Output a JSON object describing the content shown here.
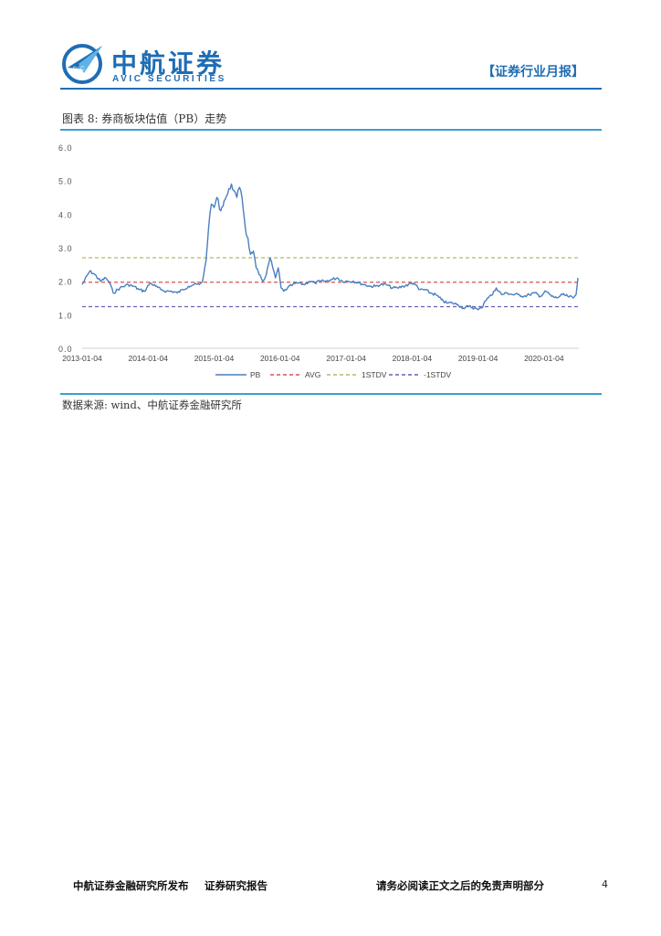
{
  "header": {
    "logo_cn": "中航证券",
    "logo_en": "AVIC SECURITIES",
    "logo_badge": "AVIC",
    "report_type": "【证券行业月报】"
  },
  "figure": {
    "caption": "图表 8: 券商板块估值（PB）走势",
    "source": "数据来源: wind、中航证券金融研究所"
  },
  "footer": {
    "left": "中航证券金融研究所发布",
    "middle": "证券研究报告",
    "right": "请务必阅读正文之后的免责声明部分",
    "page": "4"
  },
  "colors": {
    "brand": "#1f6db5",
    "rule": "#3aa0d0",
    "pb": "#4a7fbf",
    "avg": "#d9534f",
    "plus_std": "#b5b86a",
    "minus_std": "#6a5fb0"
  },
  "chart_data": {
    "type": "line",
    "x_type": "date",
    "xlim": [
      "2013-01-04",
      "2020-07-15"
    ],
    "ylim": [
      0,
      6
    ],
    "yticks": [
      "0.0",
      "1.0",
      "2.0",
      "3.0",
      "4.0",
      "5.0",
      "6.0"
    ],
    "xticks": [
      "2013-01-04",
      "2014-01-04",
      "2015-01-04",
      "2016-01-04",
      "2017-01-04",
      "2018-01-04",
      "2019-01-04",
      "2020-01-04"
    ],
    "legend": [
      "PB",
      "AVG",
      "1STDV",
      "-1STDV"
    ],
    "legend_position": "bottom",
    "series": [
      {
        "name": "PB",
        "x": [
          "2013-01-04",
          "2013-02-15",
          "2013-03-15",
          "2013-04-15",
          "2013-05-15",
          "2013-06-05",
          "2013-06-25",
          "2013-08-01",
          "2013-09-15",
          "2013-10-15",
          "2013-11-15",
          "2013-12-15",
          "2014-01-15",
          "2014-02-15",
          "2014-03-15",
          "2014-04-15",
          "2014-05-15",
          "2014-06-15",
          "2014-07-15",
          "2014-08-15",
          "2014-09-15",
          "2014-10-15",
          "2014-11-01",
          "2014-11-20",
          "2014-12-05",
          "2014-12-20",
          "2015-01-04",
          "2015-01-20",
          "2015-02-10",
          "2015-03-01",
          "2015-03-20",
          "2015-04-10",
          "2015-04-25",
          "2015-05-10",
          "2015-05-25",
          "2015-06-08",
          "2015-06-20",
          "2015-07-01",
          "2015-07-10",
          "2015-07-25",
          "2015-08-10",
          "2015-08-25",
          "2015-09-10",
          "2015-10-01",
          "2015-10-20",
          "2015-11-10",
          "2015-11-25",
          "2015-12-10",
          "2015-12-25",
          "2016-01-10",
          "2016-01-25",
          "2016-02-15",
          "2016-03-15",
          "2016-04-15",
          "2016-05-15",
          "2016-06-15",
          "2016-07-15",
          "2016-08-15",
          "2016-09-15",
          "2016-10-15",
          "2016-11-15",
          "2016-12-15",
          "2017-01-15",
          "2017-02-15",
          "2017-03-15",
          "2017-04-15",
          "2017-05-15",
          "2017-06-15",
          "2017-07-15",
          "2017-08-15",
          "2017-09-15",
          "2017-10-15",
          "2017-11-15",
          "2017-12-15",
          "2018-01-15",
          "2018-02-10",
          "2018-03-15",
          "2018-04-15",
          "2018-05-15",
          "2018-06-15",
          "2018-07-15",
          "2018-08-15",
          "2018-09-15",
          "2018-10-15",
          "2018-11-15",
          "2018-12-15",
          "2019-01-04",
          "2019-01-25",
          "2019-02-10",
          "2019-02-25",
          "2019-03-08",
          "2019-03-25",
          "2019-04-15",
          "2019-05-15",
          "2019-06-15",
          "2019-07-15",
          "2019-08-15",
          "2019-09-15",
          "2019-10-15",
          "2019-11-15",
          "2019-12-15",
          "2020-01-15",
          "2020-02-15",
          "2020-03-15",
          "2020-04-15",
          "2020-05-15",
          "2020-06-15",
          "2020-06-30",
          "2020-07-10"
        ],
        "y": [
          1.9,
          2.3,
          2.2,
          2.0,
          2.1,
          1.95,
          1.65,
          1.8,
          1.9,
          1.85,
          1.75,
          1.7,
          1.95,
          1.85,
          1.75,
          1.7,
          1.7,
          1.65,
          1.75,
          1.85,
          1.9,
          1.9,
          2.0,
          2.6,
          3.6,
          4.3,
          4.2,
          4.5,
          4.1,
          4.4,
          4.6,
          4.9,
          4.7,
          4.5,
          4.8,
          4.5,
          3.9,
          3.4,
          3.3,
          2.8,
          2.9,
          2.4,
          2.2,
          2.0,
          2.2,
          2.7,
          2.4,
          2.1,
          2.4,
          1.8,
          1.7,
          1.8,
          1.9,
          1.95,
          1.9,
          2.0,
          1.95,
          2.0,
          2.0,
          2.05,
          2.1,
          2.0,
          2.0,
          2.0,
          1.95,
          1.9,
          1.85,
          1.85,
          1.9,
          1.9,
          1.8,
          1.8,
          1.85,
          1.9,
          1.95,
          1.75,
          1.75,
          1.65,
          1.6,
          1.45,
          1.35,
          1.35,
          1.3,
          1.2,
          1.25,
          1.2,
          1.15,
          1.2,
          1.4,
          1.5,
          1.55,
          1.6,
          1.8,
          1.6,
          1.65,
          1.6,
          1.6,
          1.55,
          1.6,
          1.65,
          1.55,
          1.7,
          1.55,
          1.5,
          1.6,
          1.55,
          1.5,
          1.6,
          2.1
        ]
      },
      {
        "name": "AVG",
        "value": 1.97
      },
      {
        "name": "1STDV",
        "value": 2.7
      },
      {
        "name": "-1STDV",
        "value": 1.24
      }
    ]
  }
}
